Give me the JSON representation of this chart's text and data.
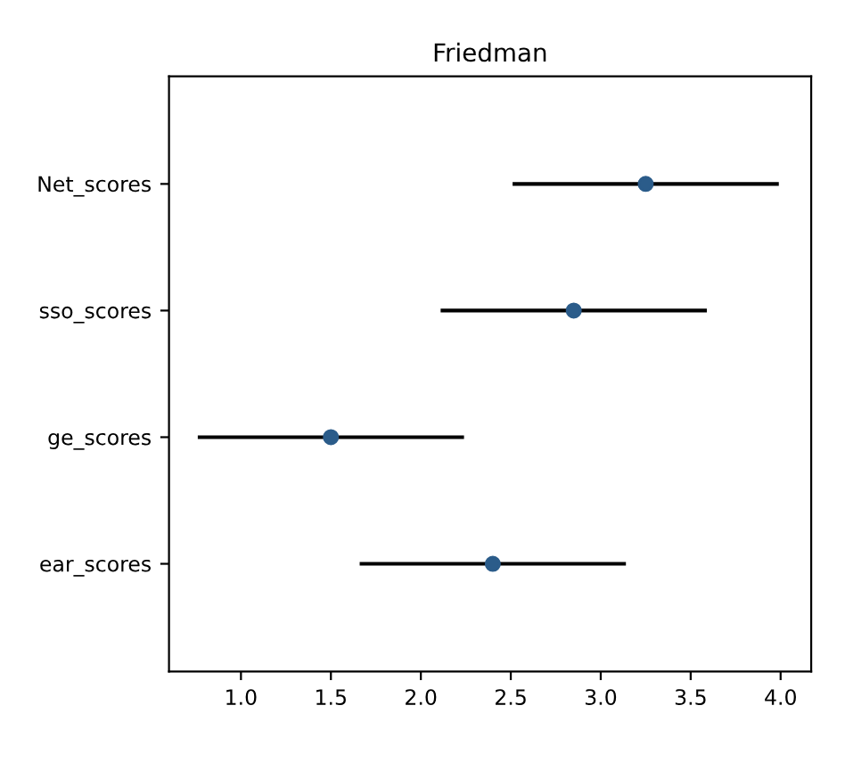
{
  "chart_data": {
    "type": "scatter",
    "title": "Friedman",
    "orientation": "horizontal",
    "categories": [
      "Net_scores",
      "sso_scores",
      "ge_scores",
      "ear_scores"
    ],
    "series": [
      {
        "color": "#2b5c8a",
        "values": [
          3.25,
          2.85,
          1.5,
          2.4
        ],
        "errors": [
          0.74,
          0.74,
          0.74,
          0.74
        ]
      }
    ],
    "xlim": [
      0.6,
      4.17
    ],
    "xticks": [
      {
        "value": 1.0,
        "label": "1.0"
      },
      {
        "value": 1.5,
        "label": "1.5"
      },
      {
        "value": 2.0,
        "label": "2.0"
      },
      {
        "value": 2.5,
        "label": "2.5"
      },
      {
        "value": 3.0,
        "label": "3.0"
      },
      {
        "value": 3.5,
        "label": "3.5"
      },
      {
        "value": 4.0,
        "label": "4.0"
      }
    ],
    "marker": "circle",
    "grid": false,
    "legend": false
  }
}
